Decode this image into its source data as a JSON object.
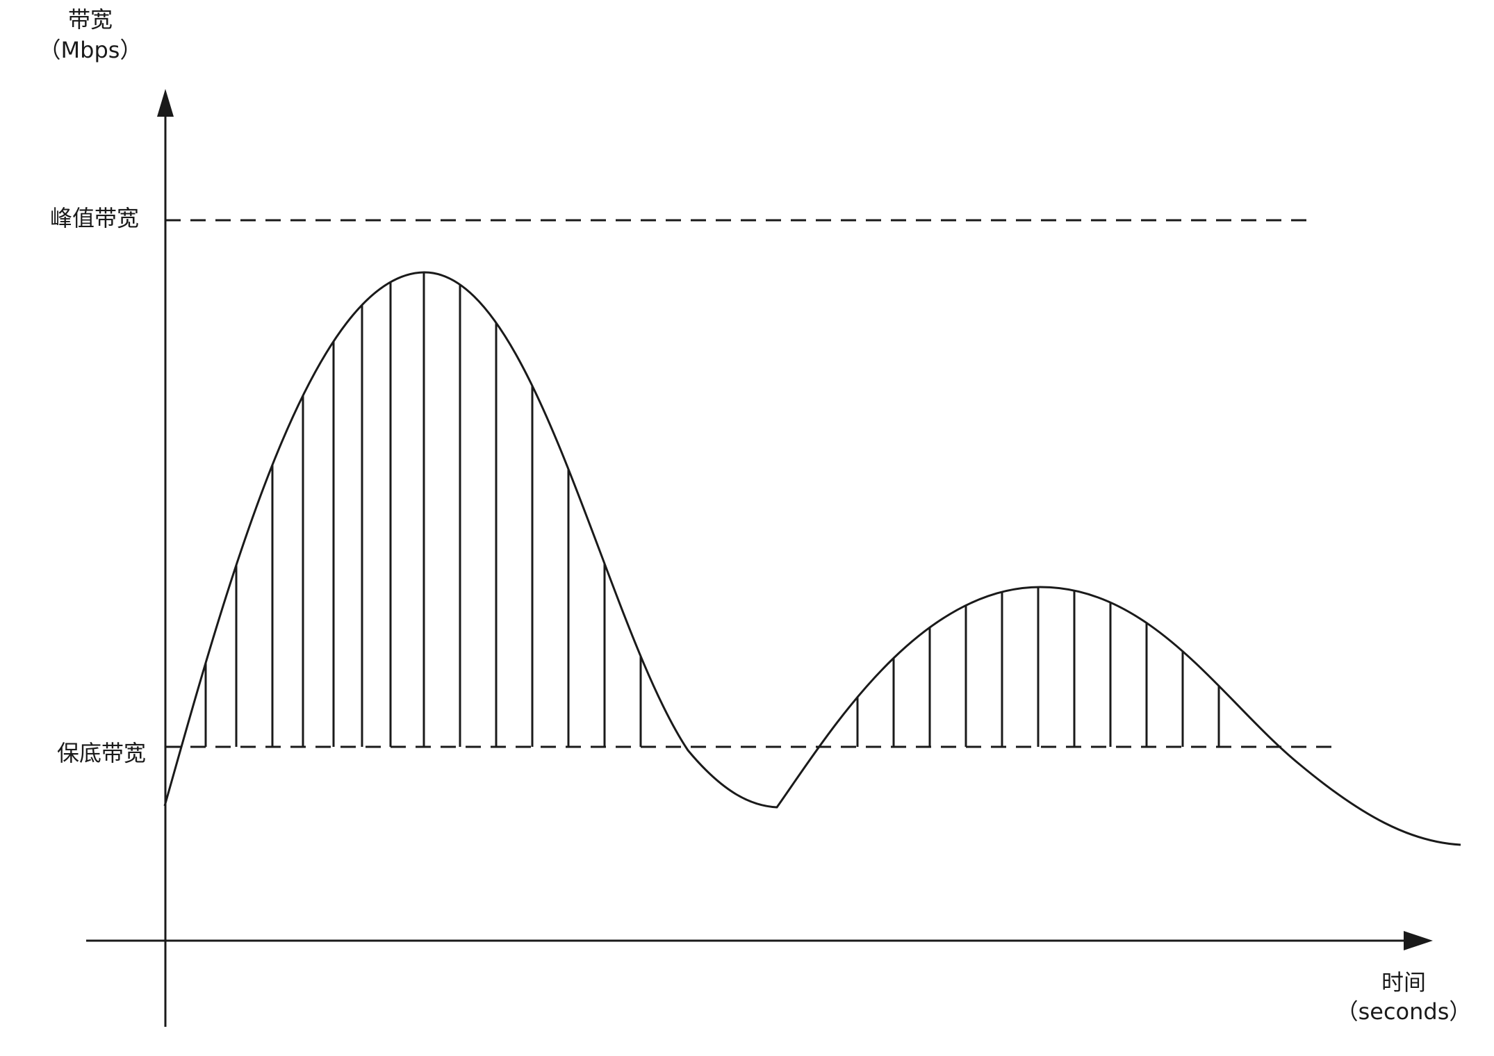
{
  "y_axis": {
    "title": "带宽",
    "unit": "（Mbps）"
  },
  "x_axis": {
    "title": "时间",
    "unit": "（seconds）"
  },
  "levels": {
    "peak_label": "峰值带宽",
    "floor_label": "保底带宽"
  },
  "colors": {
    "ink": "#1a1a1a",
    "background": "#ffffff"
  }
}
